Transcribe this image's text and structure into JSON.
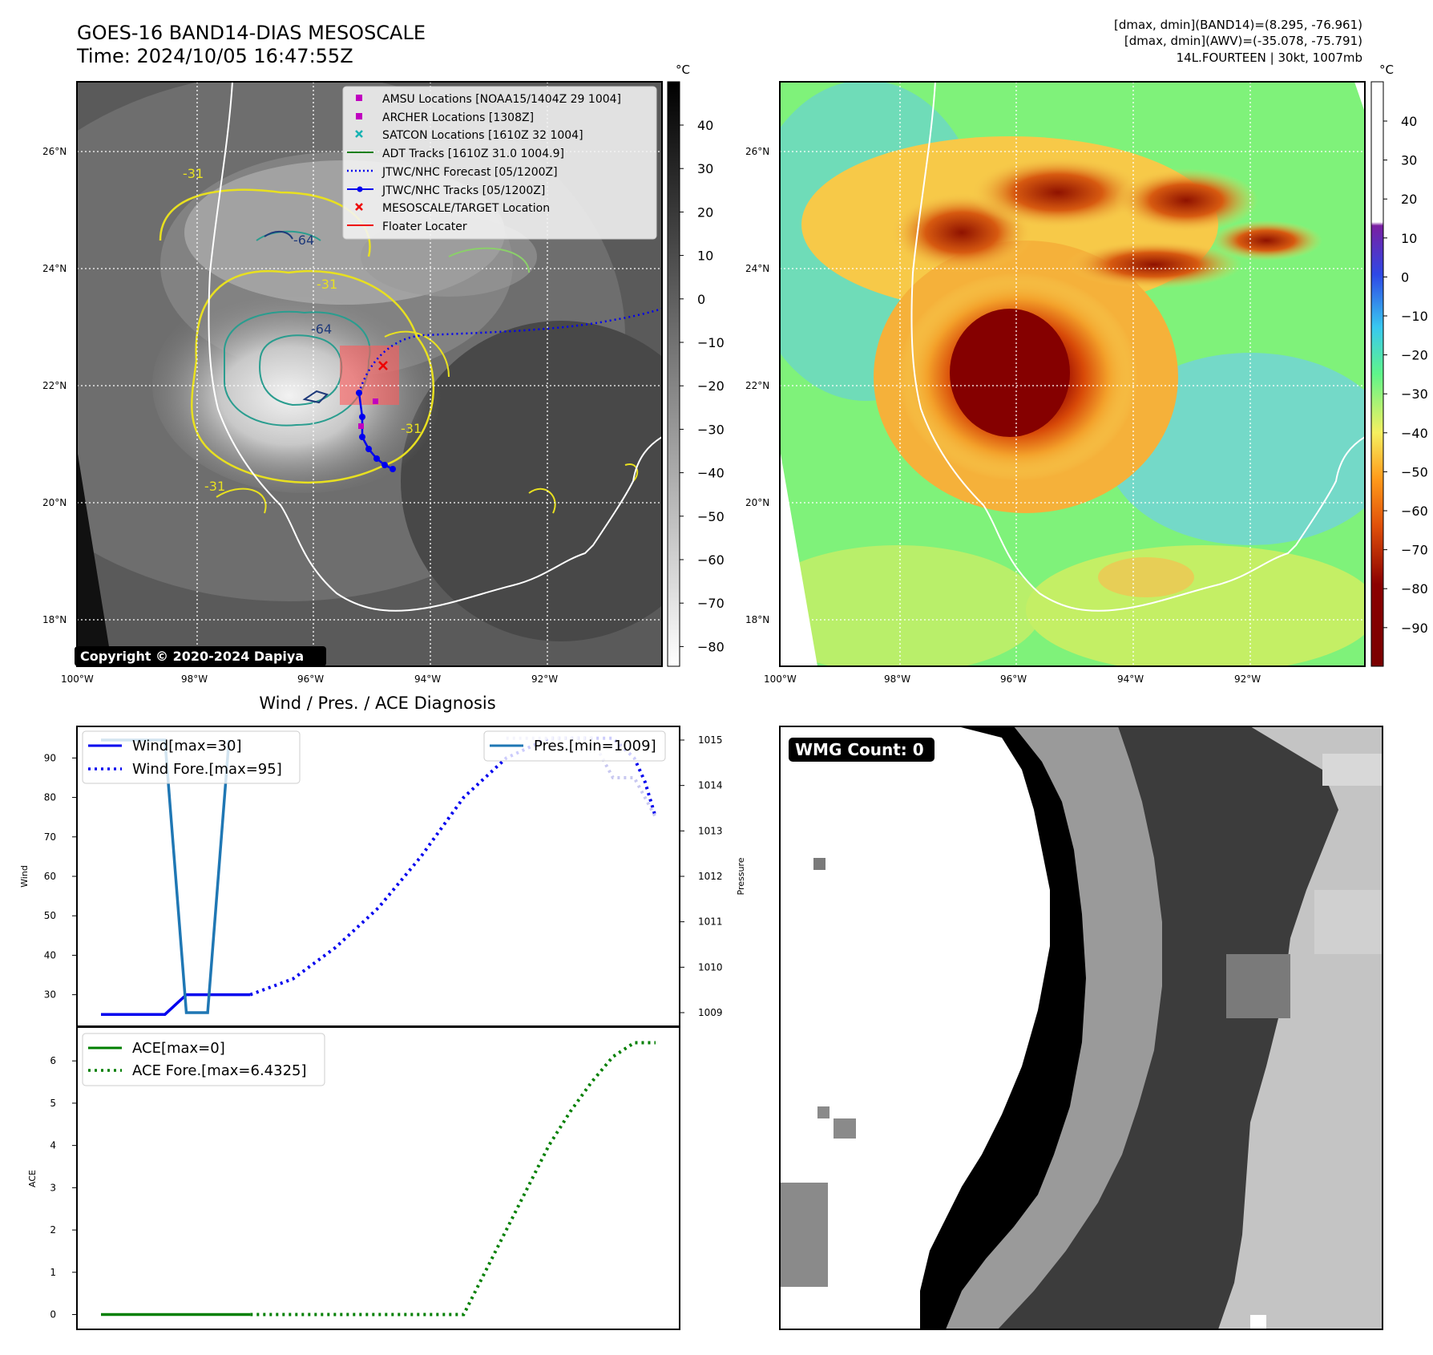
{
  "header": {
    "title_line1": "GOES-16 BAND14-DIAS MESOSCALE",
    "title_line2": "Time: 2024/10/05 16:47:55Z",
    "info_line1": "[dmax, dmin](BAND14)=(8.295, -76.961)",
    "info_line2": "[dmax, dmin](AWV)=(-35.078, -75.791)",
    "info_line3": "14L.FOURTEEN | 30kt, 1007mb"
  },
  "map": {
    "lat_labels": [
      "26°N",
      "24°N",
      "22°N",
      "20°N",
      "18°N"
    ],
    "lon_labels": [
      "100°W",
      "98°W",
      "96°W",
      "94°W",
      "92°W"
    ],
    "copyright": "Copyright © 2020-2024 Dapiya",
    "contour_labels": [
      "-64",
      "-31",
      "-64",
      "-31",
      "-31",
      "-31"
    ],
    "legend": [
      {
        "label": "AMSU Locations [NOAA15/1404Z 29 1004]",
        "color": "#c000c0",
        "marker": "square"
      },
      {
        "label": "ARCHER Locations [1308Z]",
        "color": "#c000c0",
        "marker": "square"
      },
      {
        "label": "SATCON Locations [1610Z 32 1004]",
        "color": "#17b3b3",
        "marker": "x"
      },
      {
        "label": "ADT Tracks [1610Z 31.0 1004.9]",
        "color": "#1a7f1a",
        "marker": "line"
      },
      {
        "label": "JTWC/NHC Forecast [05/1200Z]",
        "color": "#0000ee",
        "marker": "dotted"
      },
      {
        "label": "JTWC/NHC Tracks [05/1200Z]",
        "color": "#0000ee",
        "marker": "line-dot"
      },
      {
        "label": "MESOSCALE/TARGET Location",
        "color": "#ee0000",
        "marker": "x"
      },
      {
        "label": "Floater Locater",
        "color": "#ee0000",
        "marker": "line"
      }
    ]
  },
  "colorbar_left": {
    "unit": "°C",
    "ticks": [
      "40",
      "30",
      "20",
      "10",
      "0",
      "−10",
      "−20",
      "−30",
      "−40",
      "−50",
      "−60",
      "−70",
      "−80"
    ]
  },
  "colorbar_right": {
    "unit": "°C",
    "ticks": [
      "40",
      "30",
      "20",
      "10",
      "0",
      "−10",
      "−20",
      "−30",
      "−40",
      "−50",
      "−60",
      "−70",
      "−80",
      "−90"
    ]
  },
  "wmg": {
    "label": "WMG Count: 0"
  },
  "colors": {
    "wind": "#0000ee",
    "pressure": "#1f77b4",
    "ace": "#007f00"
  },
  "chart_data": [
    {
      "type": "line",
      "title": "Wind / Pres. / ACE Diagnosis",
      "ylabel": "Wind",
      "y2label": "Pressure",
      "ylim": [
        22,
        98
      ],
      "y2lim": [
        1008.7,
        1015.3
      ],
      "yticks": [
        30,
        40,
        50,
        60,
        70,
        80,
        90
      ],
      "y2ticks": [
        1009,
        1010,
        1011,
        1012,
        1013,
        1014,
        1015
      ],
      "xlim": [
        0,
        26
      ],
      "series": [
        {
          "name": "Wind[max=30]",
          "style": "solid",
          "axis": "left",
          "x": [
            0,
            3,
            4,
            7
          ],
          "y": [
            25,
            25,
            30,
            30
          ]
        },
        {
          "name": "Wind Fore.[max=95]",
          "style": "dotted",
          "axis": "left",
          "x": [
            7,
            9,
            11,
            13,
            15,
            17,
            19,
            21,
            23,
            24,
            25,
            25.5,
            26
          ],
          "y": [
            30,
            34,
            42,
            52,
            65,
            80,
            90,
            95,
            95,
            95,
            90,
            84,
            75
          ]
        },
        {
          "name": "Pres.[min=1009]",
          "style": "solid",
          "axis": "right",
          "x": [
            0,
            3,
            4,
            5,
            6
          ],
          "y": [
            1015,
            1015,
            1009,
            1009,
            1015
          ]
        },
        {
          "name": "",
          "style": "dotted",
          "axis": "left",
          "x": [
            19,
            21,
            23,
            24,
            25,
            26
          ],
          "y": [
            95,
            95,
            95,
            85,
            85,
            75
          ]
        }
      ]
    },
    {
      "type": "line",
      "ylabel": "ACE",
      "ylim": [
        -0.35,
        6.8
      ],
      "yticks": [
        0,
        1,
        2,
        3,
        4,
        5,
        6
      ],
      "xlim": [
        0,
        26
      ],
      "series": [
        {
          "name": "ACE[max=0]",
          "style": "solid",
          "x": [
            0,
            7
          ],
          "y": [
            0,
            0
          ]
        },
        {
          "name": "ACE Fore.[max=6.4325]",
          "style": "dotted",
          "x": [
            7,
            17,
            18,
            19,
            20,
            21,
            22,
            23,
            24,
            25,
            26
          ],
          "y": [
            0,
            0,
            1,
            2,
            3,
            4,
            4.8,
            5.5,
            6.1,
            6.43,
            6.43
          ]
        }
      ]
    }
  ]
}
